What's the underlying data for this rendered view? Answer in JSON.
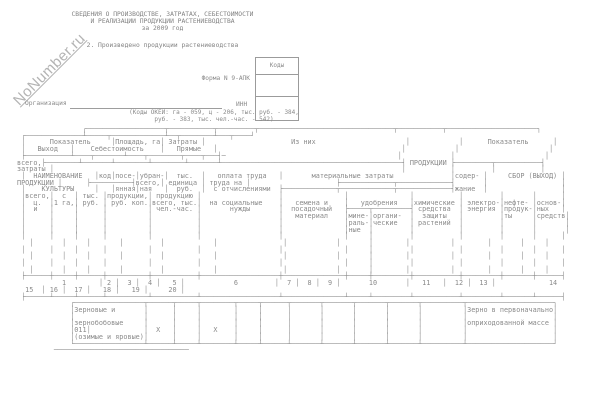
{
  "watermark": {
    "text": "NoNumber.ru"
  },
  "header": {
    "title_line1": "СВЕДЕНИЯ О ПРОИЗВОДСТВЕ, ЗАТРАТАХ, СЕБЕСТОИМОСТИ",
    "title_line2": "И РЕАЛИЗАЦИИ ПРОДУКЦИИ РАСТЕНИЕВОДСТВА",
    "title_line3": "за 2009 год",
    "section_title": "2. Произведено продукции растениеводства",
    "form_label": "Форма N 9-АПК",
    "codes_label": "Коды",
    "org_label": "Организация",
    "inn_label": "ИНН",
    "okei_line1": "(Коды ОКЕИ: га - 059, ц - 206, тыс. руб. - 384,",
    "okei_line2": "руб. - 383, тыс. чел.-час. - 542)"
  },
  "table": {
    "row": {
      "name_line1": "Зерновые и",
      "name_line2": "зернобобовые",
      "name_line3": "(озимые и яровые)",
      "code": "011",
      "x_mark": "Х",
      "note_line1": "Зерно в первоначально",
      "note_line2": "оприходованной массе"
    },
    "column_numbers_top": [
      "1",
      "2",
      "3",
      "4",
      "5",
      "6",
      "7",
      "8",
      "9",
      "10",
      "11",
      "12",
      "13",
      "14"
    ],
    "column_numbers_bottom": [
      "15",
      "16",
      "17",
      "18",
      "19",
      "20"
    ],
    "ascii_lines": [
      "                ┌───────────────────┬───────────┬─────────┬─────────────────────────────────┬───────────┬──────────────────────┐",
      " ┌──────────────┴─────┬─────────────┴──┬────────┴───┬────┘",
      " │      Показатель     │Площадь, га│ Затраты │                     Из них                      │            │      Показатель      │",
      " │   Выход   │    Себестоимость    │   Прямые   │                                             │            │                      │",
      " ├───────────┴────┬───────┴────┬────────┬────┬───┤─                                          │            │                      │",
      "всего,├────────┴───────┴────────┴────────┴───────┴────────────────────────────────────────────┤ ПРОДУКЦИИ ├─────────┬───────────┤",
      "затраты │                                                                                     │           │         │           │",
      " │  НАИМЕНОВАНИЕ   │код│посе-│убран-│  тыс.  │   оплата труда   │       материальные затраты              │содер- │     СБОР (ВЫХОД) │",
      "ПРОДУКЦИИ │      ├──────────┤всего,│ единица │ труда на │                     ├─────────────┬─────────────┤       │                  │",
      " │    КУЛЬТУРЫ     │   │янная│ная   │  руб.  │  с отчислениями  ├─────────────┬─────────────┬─────────────┤жание  │                  │",
      " │всего,│  с  │ тыс. │продукции,│ продукцию │                   │               │               │           │         │       │      │",
      " │  ц.  │1 га,│ руб. │ руб. коп.│всего, тыс.│  на социальные    │   семена и    │   удобрения   │химические │ электро-│нефте- │основ-│",
      " │  и   │     │      │          │ чел.-час. │       нужды       │  посадочный   ├─────┬─────────┤ средства  │ энергия │продук-│ных   │",
      " │      │     │      │          │           │                   │   материал    │мине-│органи-  │  защиты   │         │ты     │средств│",
      " │      │     │      │          │           │                   │               │раль-│ческие   │ растений  │         │       │       │",
      " │      │     │      │          │           │                   │               │ные  │         │           │         │       │       │",
      " │      │     │      │          │           │                   │               │     │         │           │         │       │      │",
      "   │       │     │       │         │            │                │            │       │        │          │        │       │     │",
      " │      │     │      │          │           │                   │               │     │         │           │         │       │      │",
      "   │       │     │       │         │            │                │            │       │        │          │        │       │     │",
      " │      │     │      │          │           │                   │               │     │         │           │         │       │      │",
      "   │       │     │       │         │            │                │            │       │        │          │        │       │     │",
      " ├──────┼─────┼──────┼──────────┼───────────┼───────────────────┼───────────────┼─────┼─────────┼───────────┼─────────┼───────┼──────┤",
      "           1        │ 2 │  3 │  4 │   5 │            6         │  7 │  8 │  9 │       10       │   11   │  12 │  13 │             14",
      "  15  │ 16 │  17 │   18 │   19 │     20 │",
      " ├──────┴─────┴──────┴──────────┴───────────┴───────────────────┴───────────────┴─────┴─────────┴───────────┴─────────┴───────┴──────┤",
      "             ┌─────────────────┬──────┬─────┬────────┬─────┬──────┬───────┬───────┬───────┬───────┬──────────┬─────────────────────┐",
      "             │Зерновые и       │      │     │        │     │      │       │       │       │       │          │Зерно в первоначально│",
      "             │                 │      │     │        │     │      │       │       │       │       │          │                     │",
      "             │зернобобовые     │      │     │        │     │      │       │       │       │       │          │оприходованной массе │",
      "             │011│             │  Х   │     │   Х    │     │      │       │       │       │       │          │                     │",
      "             │(озимые и яровые)│      │     │        │     │      │       │       │       │       │          │                     │",
      "             └─────────────────┴──────┴─────┴────────┴─────┴──────┴───────┴───────┴───────┴───────┴──────────┴─────────────────────┘",
      "         ─────────────────────────────────"
    ]
  }
}
